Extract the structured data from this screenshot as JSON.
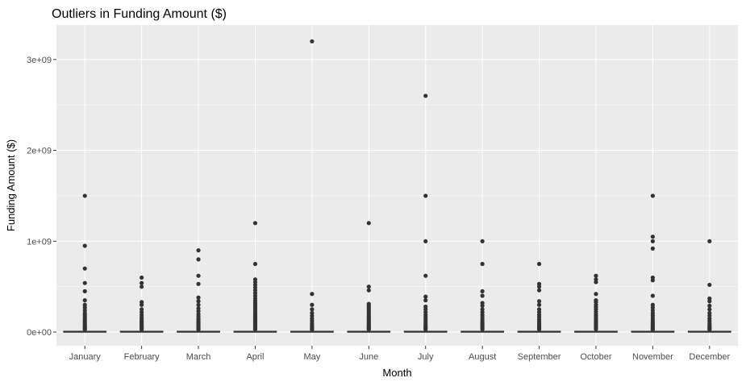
{
  "chart_data": {
    "type": "boxplot",
    "title": "Outliers in Funding Amount ($)",
    "xlabel": "Month",
    "ylabel": "Funding Amount ($)",
    "categories": [
      "January",
      "February",
      "March",
      "April",
      "May",
      "June",
      "July",
      "August",
      "September",
      "October",
      "November",
      "December"
    ],
    "yticks": [
      {
        "value": 0,
        "label": "0e+00"
      },
      {
        "value": 1000000000,
        "label": "1e+09"
      },
      {
        "value": 2000000000,
        "label": "2e+09"
      },
      {
        "value": 3000000000,
        "label": "3e+09"
      }
    ],
    "ylim": [
      -150000000,
      3380000000
    ],
    "grid": true,
    "boxes": [
      {
        "month": "January",
        "median": 3000000,
        "q1": 500000,
        "q3": 10000000,
        "whisker_low": 0,
        "whisker_high": 25000000,
        "outliers": [
          1500000000,
          950000000,
          700000000,
          540000000,
          450000000,
          350000000,
          300000000,
          270000000,
          240000000,
          210000000,
          190000000,
          170000000,
          150000000,
          130000000,
          115000000,
          100000000,
          85000000,
          70000000,
          58000000,
          46000000,
          36000000,
          28000000
        ]
      },
      {
        "month": "February",
        "median": 3000000,
        "q1": 500000,
        "q3": 10000000,
        "whisker_low": 0,
        "whisker_high": 25000000,
        "outliers": [
          600000000,
          540000000,
          500000000,
          330000000,
          300000000,
          250000000,
          220000000,
          190000000,
          165000000,
          145000000,
          125000000,
          110000000,
          95000000,
          80000000,
          68000000,
          56000000,
          45000000,
          36000000,
          28000000
        ]
      },
      {
        "month": "March",
        "median": 3000000,
        "q1": 500000,
        "q3": 10000000,
        "whisker_low": 0,
        "whisker_high": 25000000,
        "outliers": [
          900000000,
          800000000,
          620000000,
          530000000,
          380000000,
          340000000,
          300000000,
          260000000,
          230000000,
          200000000,
          175000000,
          150000000,
          130000000,
          112000000,
          96000000,
          82000000,
          68000000,
          56000000,
          45000000,
          35000000,
          27000000
        ]
      },
      {
        "month": "April",
        "median": 3000000,
        "q1": 500000,
        "q3": 10000000,
        "whisker_low": 0,
        "whisker_high": 25000000,
        "outliers": [
          1200000000,
          750000000,
          580000000,
          550000000,
          520000000,
          490000000,
          460000000,
          430000000,
          400000000,
          370000000,
          345000000,
          320000000,
          300000000,
          280000000,
          260000000,
          240000000,
          220000000,
          200000000,
          185000000,
          170000000,
          155000000,
          140000000,
          125000000,
          112000000,
          100000000,
          88000000,
          76000000,
          65000000,
          55000000,
          46000000,
          38000000,
          30000000
        ]
      },
      {
        "month": "May",
        "median": 3000000,
        "q1": 500000,
        "q3": 10000000,
        "whisker_low": 0,
        "whisker_high": 25000000,
        "outliers": [
          3200000000,
          420000000,
          300000000,
          250000000,
          210000000,
          180000000,
          150000000,
          125000000,
          100000000,
          80000000,
          62000000,
          48000000,
          36000000,
          28000000
        ]
      },
      {
        "month": "June",
        "median": 3000000,
        "q1": 500000,
        "q3": 10000000,
        "whisker_low": 0,
        "whisker_high": 25000000,
        "outliers": [
          1200000000,
          500000000,
          460000000,
          310000000,
          290000000,
          270000000,
          250000000,
          230000000,
          210000000,
          190000000,
          172000000,
          155000000,
          140000000,
          125000000,
          110000000,
          96000000,
          83000000,
          70000000,
          58000000,
          47000000,
          38000000,
          30000000
        ]
      },
      {
        "month": "July",
        "median": 3000000,
        "q1": 500000,
        "q3": 10000000,
        "whisker_low": 0,
        "whisker_high": 25000000,
        "outliers": [
          2600000000,
          1500000000,
          1000000000,
          620000000,
          390000000,
          350000000,
          280000000,
          250000000,
          220000000,
          190000000,
          165000000,
          140000000,
          120000000,
          100000000,
          82000000,
          66000000,
          52000000,
          40000000,
          30000000
        ]
      },
      {
        "month": "August",
        "median": 3000000,
        "q1": 500000,
        "q3": 10000000,
        "whisker_low": 0,
        "whisker_high": 25000000,
        "outliers": [
          1000000000,
          750000000,
          450000000,
          400000000,
          320000000,
          290000000,
          250000000,
          220000000,
          190000000,
          165000000,
          140000000,
          120000000,
          100000000,
          83000000,
          68000000,
          54000000,
          42000000,
          32000000
        ]
      },
      {
        "month": "September",
        "median": 3000000,
        "q1": 500000,
        "q3": 10000000,
        "whisker_low": 0,
        "whisker_high": 25000000,
        "outliers": [
          750000000,
          530000000,
          500000000,
          460000000,
          340000000,
          300000000,
          250000000,
          220000000,
          190000000,
          165000000,
          140000000,
          120000000,
          100000000,
          82000000,
          66000000,
          52000000,
          40000000,
          30000000
        ]
      },
      {
        "month": "October",
        "median": 3000000,
        "q1": 500000,
        "q3": 10000000,
        "whisker_low": 0,
        "whisker_high": 25000000,
        "outliers": [
          620000000,
          580000000,
          550000000,
          420000000,
          350000000,
          330000000,
          300000000,
          275000000,
          250000000,
          225000000,
          200000000,
          180000000,
          160000000,
          140000000,
          122000000,
          106000000,
          92000000,
          78000000,
          65000000,
          53000000,
          42000000,
          33000000
        ]
      },
      {
        "month": "November",
        "median": 3000000,
        "q1": 500000,
        "q3": 10000000,
        "whisker_low": 0,
        "whisker_high": 25000000,
        "outliers": [
          1500000000,
          1050000000,
          1000000000,
          920000000,
          600000000,
          570000000,
          400000000,
          300000000,
          270000000,
          240000000,
          210000000,
          185000000,
          160000000,
          138000000,
          118000000,
          100000000,
          84000000,
          70000000,
          57000000,
          45000000,
          35000000,
          27000000
        ]
      },
      {
        "month": "December",
        "median": 3000000,
        "q1": 500000,
        "q3": 10000000,
        "whisker_low": 0,
        "whisker_high": 25000000,
        "outliers": [
          1000000000,
          520000000,
          370000000,
          340000000,
          290000000,
          250000000,
          210000000,
          180000000,
          150000000,
          125000000,
          100000000,
          80000000,
          62000000,
          48000000,
          36000000,
          27000000
        ]
      }
    ],
    "colors": {
      "panel": "#ebebeb",
      "grid_major": "#ffffff",
      "box_fill": "#ffffff",
      "box_line": "#333333",
      "point": "#333333",
      "tick": "#333333"
    }
  }
}
